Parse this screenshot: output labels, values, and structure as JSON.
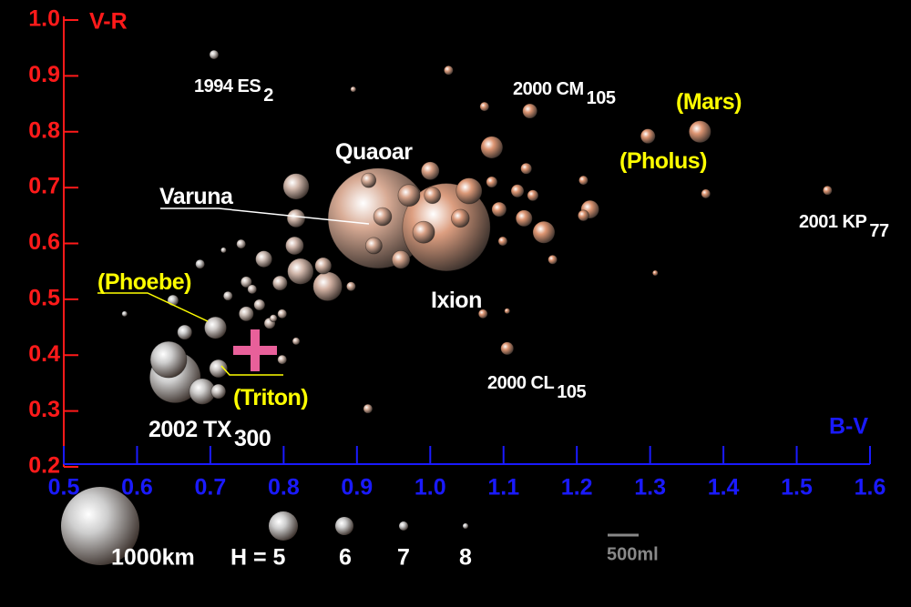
{
  "chart_data": {
    "type": "bubble",
    "y_label": "V-R",
    "x_label": "B-V",
    "xlim": [
      0.5,
      1.6
    ],
    "ylim": [
      0.2,
      1.0
    ],
    "xticks": [
      0.5,
      0.6,
      0.7,
      0.8,
      0.9,
      {
        "value": 1.0,
        "label": "1.0"
      },
      1.1,
      1.2,
      1.3,
      1.4,
      1.5,
      1.6
    ],
    "yticks": [
      0.2,
      0.3,
      0.4,
      0.5,
      0.6,
      0.7,
      0.8,
      0.9,
      {
        "value": 1.0,
        "label": "1.0"
      }
    ],
    "y_color": "#ff1a1a",
    "x_color": "#1a1aff",
    "x": [
      0.705,
      0.895,
      1.025,
      1.074,
      1.136,
      1.084,
      1.297,
      1.368,
      1.376,
      1.542,
      1.307,
      1.209,
      1.218,
      1.209,
      1.155,
      1.167,
      1.131,
      1.14,
      1.119,
      1.094,
      1.128,
      1.099,
      1.053,
      1.041,
      1.084,
      1.072,
      1.105,
      1.105,
      0.915,
      0.929,
      1.022,
      0.817,
      0.817,
      0.815,
      0.823,
      0.86,
      0.854,
      1.0,
      0.971,
      0.916,
      0.935,
      0.923,
      0.96,
      0.991,
      1.003,
      0.892,
      0.795,
      0.773,
      0.742,
      0.718,
      0.749,
      0.724,
      0.767,
      0.749,
      0.781,
      0.798,
      0.757,
      0.707,
      0.665,
      0.643,
      0.652,
      0.689,
      0.711,
      0.711,
      0.583,
      0.649,
      0.686,
      0.798,
      0.786,
      0.817
    ],
    "values": [
      0.938,
      0.876,
      0.91,
      0.845,
      0.837,
      0.772,
      0.792,
      0.8,
      0.689,
      0.695,
      0.547,
      0.713,
      0.661,
      0.65,
      0.62,
      0.571,
      0.734,
      0.686,
      0.694,
      0.661,
      0.645,
      0.604,
      0.694,
      0.645,
      0.71,
      0.474,
      0.479,
      0.412,
      0.304,
      0.645,
      0.629,
      0.702,
      0.645,
      0.596,
      0.55,
      0.523,
      0.56,
      0.73,
      0.686,
      0.713,
      0.648,
      0.596,
      0.571,
      0.62,
      0.686,
      0.523,
      0.529,
      0.572,
      0.599,
      0.588,
      0.531,
      0.506,
      0.49,
      0.474,
      0.457,
      0.474,
      0.518,
      0.449,
      0.441,
      0.392,
      0.36,
      0.335,
      0.335,
      0.376,
      0.474,
      0.498,
      0.563,
      0.392,
      0.466,
      0.425
    ],
    "sizes": [
      116,
      70,
      116,
      116,
      186,
      280,
      186,
      280,
      116,
      116,
      70,
      116,
      230,
      140,
      280,
      116,
      140,
      140,
      163,
      186,
      210,
      116,
      330,
      230,
      140,
      116,
      70,
      163,
      116,
      1280,
      1120,
      330,
      230,
      230,
      330,
      370,
      210,
      230,
      280,
      186,
      230,
      210,
      230,
      280,
      210,
      116,
      186,
      210,
      116,
      70,
      140,
      116,
      140,
      186,
      140,
      116,
      116,
      280,
      186,
      465,
      650,
      330,
      186,
      230,
      70,
      140,
      116,
      116,
      93,
      93
    ],
    "annotations": [
      {
        "text": "1994 ES",
        "sub": "2",
        "color": "#ffffff"
      },
      {
        "text": "2000 CM",
        "sub": "105",
        "color": "#ffffff"
      },
      {
        "text": "(Mars)",
        "color": "#ffff00"
      },
      {
        "text": "Quaoar",
        "color": "#ffffff"
      },
      {
        "text": "(Pholus)",
        "color": "#ffff00"
      },
      {
        "text": "Varuna",
        "color": "#ffffff"
      },
      {
        "text": "2001 KP",
        "sub": "77",
        "color": "#ffffff"
      },
      {
        "text": "(Phoebe)",
        "color": "#ffff00"
      },
      {
        "text": "Ixion",
        "color": "#ffffff"
      },
      {
        "text": "(Triton)",
        "color": "#ffff00"
      },
      {
        "text": "2000 CL",
        "sub": "105",
        "color": "#ffffff"
      },
      {
        "text": "2002 TX",
        "sub": "300",
        "color": "#ffffff"
      }
    ],
    "legend": {
      "scale_label": "1000km",
      "h_labels": [
        "H = 5",
        "6",
        "7",
        "8"
      ],
      "bar_label": "500ml"
    }
  }
}
